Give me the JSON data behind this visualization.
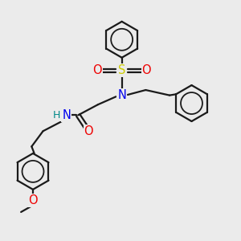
{
  "bg_color": "#ebebeb",
  "bond_color": "#1a1a1a",
  "bond_width": 1.6,
  "N_color": "#0000ee",
  "O_color": "#ee0000",
  "S_color": "#cccc00",
  "H_color": "#008888",
  "font_size": 9.5,
  "figsize": [
    3.0,
    3.0
  ],
  "dpi": 100,
  "xlim": [
    0,
    9
  ],
  "ylim": [
    0,
    9
  ]
}
